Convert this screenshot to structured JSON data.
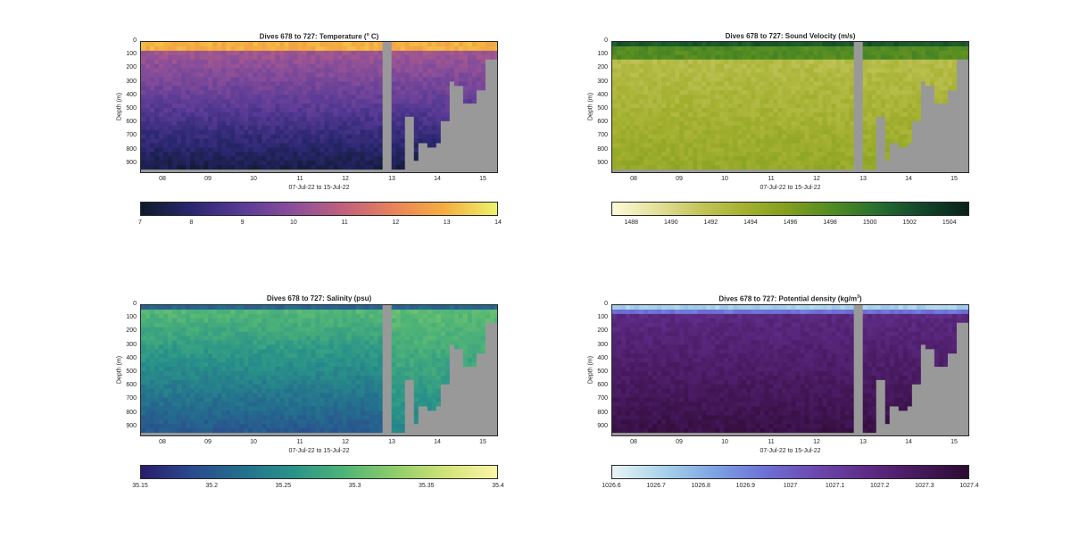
{
  "chart_data": [
    {
      "type": "heatmap",
      "title_main": "Dives 678 to 727: Temperature (",
      "title_sup": "o",
      "title_tail": " C)",
      "ylabel": "Depth (m)",
      "xlabel": "07-Jul-22 to 15-Jul-22",
      "yticks": [
        "0",
        "100",
        "200",
        "300",
        "400",
        "500",
        "600",
        "700",
        "800",
        "900"
      ],
      "xticks": [
        "08",
        "09",
        "10",
        "11",
        "12",
        "13",
        "14",
        "15"
      ],
      "colorbar_ticks": [
        "7",
        "8",
        "9",
        "10",
        "11",
        "12",
        "13",
        "14"
      ],
      "clim": [
        7,
        14
      ],
      "colormap": [
        "#0d1a2a",
        "#2a2770",
        "#5a3b96",
        "#8b4f9a",
        "#c1617e",
        "#ea845a",
        "#f5b040",
        "#ecf36b"
      ],
      "no_data_color": "#999999"
    },
    {
      "type": "heatmap",
      "title_main": "Dives 678 to 727: Sound Velocity (m/s)",
      "title_sup": "",
      "title_tail": "",
      "ylabel": "Depth (m)",
      "xlabel": "07-Jul-22 to 15-Jul-22",
      "yticks": [
        "0",
        "100",
        "200",
        "300",
        "400",
        "500",
        "600",
        "700",
        "800",
        "900"
      ],
      "xticks": [
        "08",
        "09",
        "10",
        "11",
        "12",
        "13",
        "14",
        "15"
      ],
      "colorbar_ticks": [
        "1488",
        "1490",
        "1492",
        "1494",
        "1496",
        "1498",
        "1500",
        "1502",
        "1504"
      ],
      "clim": [
        1487,
        1505
      ],
      "colormap": [
        "#fdfbd8",
        "#e4e09a",
        "#c3c45a",
        "#a3b02f",
        "#7f9d1f",
        "#4f8a22",
        "#256d2f",
        "#12442a",
        "#0a2118"
      ],
      "no_data_color": "#999999"
    },
    {
      "type": "heatmap",
      "title_main": "Dives 678 to 727: Salinity (psu)",
      "title_sup": "",
      "title_tail": "",
      "ylabel": "Depth (m)",
      "xlabel": "07-Jul-22 to 15-Jul-22",
      "yticks": [
        "0",
        "100",
        "200",
        "300",
        "400",
        "500",
        "600",
        "700",
        "800",
        "900"
      ],
      "xticks": [
        "08",
        "09",
        "10",
        "11",
        "12",
        "13",
        "14",
        "15"
      ],
      "colorbar_ticks": [
        "35.15",
        "35.2",
        "35.25",
        "35.3",
        "35.35",
        "35.4"
      ],
      "clim": [
        35.15,
        35.4
      ],
      "colormap": [
        "#2a1d6b",
        "#2b4a8e",
        "#246f8e",
        "#2a9389",
        "#4fb477",
        "#8fcd6a",
        "#d2e37a",
        "#fdf5a8"
      ],
      "no_data_color": "#999999"
    },
    {
      "type": "heatmap",
      "title_main": "Dives 678 to 727: Potential density (kg/m",
      "title_sup": "3",
      "title_tail": ")",
      "ylabel": "Depth (m)",
      "xlabel": "07-Jul-22 to 15-Jul-22",
      "yticks": [
        "0",
        "100",
        "200",
        "300",
        "400",
        "500",
        "600",
        "700",
        "800",
        "900"
      ],
      "xticks": [
        "08",
        "09",
        "10",
        "11",
        "12",
        "13",
        "14",
        "15"
      ],
      "colorbar_ticks": [
        "1026.6",
        "1026.7",
        "1026.8",
        "1026.9",
        "1027",
        "1027.1",
        "1027.2",
        "1027.3",
        "1027.4"
      ],
      "clim": [
        1026.6,
        1027.4
      ],
      "colormap": [
        "#e8f4f4",
        "#a9d2ea",
        "#7ea4e3",
        "#6d71d6",
        "#6d48b0",
        "#5e2c86",
        "#47195e",
        "#2b0b30"
      ],
      "no_data_color": "#999999"
    }
  ]
}
